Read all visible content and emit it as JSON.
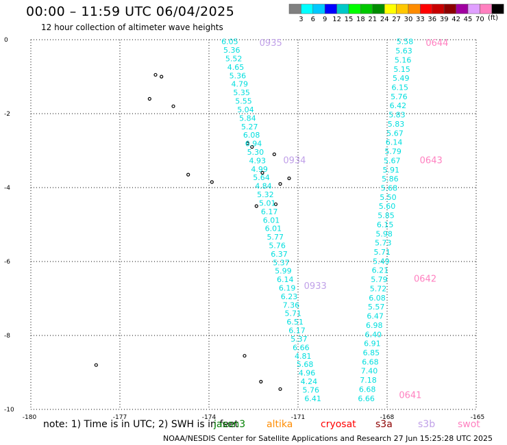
{
  "header": {
    "title": "00:00 – 11:59 UTC 06/04/2025",
    "subtitle": "12 hour collection of altimeter wave heights"
  },
  "colorbar": {
    "unit": "(ft)",
    "segments": [
      {
        "color": "#808080",
        "label": ""
      },
      {
        "color": "#00ffff",
        "label": "3"
      },
      {
        "color": "#00c8ff",
        "label": "6"
      },
      {
        "color": "#0000ff",
        "label": "9"
      },
      {
        "color": "#00c8c8",
        "label": "12"
      },
      {
        "color": "#00ff00",
        "label": "15"
      },
      {
        "color": "#00c800",
        "label": "18"
      },
      {
        "color": "#008c00",
        "label": "21"
      },
      {
        "color": "#ffff00",
        "label": "24"
      },
      {
        "color": "#ffc800",
        "label": "27"
      },
      {
        "color": "#ff8c00",
        "label": "30"
      },
      {
        "color": "#ff0000",
        "label": "33"
      },
      {
        "color": "#c80000",
        "label": "36"
      },
      {
        "color": "#8c0000",
        "label": "39"
      },
      {
        "color": "#a000a0",
        "label": "42"
      },
      {
        "color": "#e0a0ff",
        "label": "45"
      },
      {
        "color": "#ff80c0",
        "label": "70"
      },
      {
        "color": "#000000",
        "label": ""
      }
    ]
  },
  "axes": {
    "lon_range": [
      -180,
      -165
    ],
    "lat_range": [
      -10,
      0
    ],
    "x_ticks": [
      "-180",
      "-177",
      "-174",
      "-171",
      "-168",
      "-165"
    ],
    "x_tick_values": [
      -180,
      -177,
      -174,
      -171,
      -168,
      -165
    ],
    "y_ticks": [
      "0",
      "-2",
      "-4",
      "-6",
      "-8",
      "-10"
    ],
    "y_tick_values": [
      0,
      -2,
      -4,
      -6,
      -8,
      -10
    ]
  },
  "tracks": [
    {
      "label_color": "#00dede",
      "start": [
        -173.3,
        -0.05
      ],
      "end": [
        -170.5,
        -9.7
      ],
      "values": [
        "6.05",
        "5.36",
        "5.52",
        "4.65",
        "5.36",
        "4.79",
        "5.35",
        "5.55",
        "5.04",
        "5.84",
        "5.27",
        "6.08",
        "6.94",
        "5.30",
        "4.93",
        "4.99",
        "5.64",
        "4.84",
        "5.32",
        "5.01",
        "6.17",
        "6.01",
        "6.01",
        "5.77",
        "5.76",
        "6.37",
        "5.37",
        "5.99",
        "6.14",
        "6.19",
        "6.23",
        "7.36",
        "5.71",
        "6.51",
        "6.17",
        "5.37",
        "6.66",
        "4.81",
        "5.68",
        "4.96",
        "4.24",
        "5.76",
        "6.41"
      ],
      "times": [
        {
          "text": "0935",
          "lon": -172.3,
          "lat": -0.07,
          "color": "#c0a0e8"
        },
        {
          "text": "0934",
          "lon": -171.5,
          "lat": -3.25,
          "color": "#c0a0e8"
        },
        {
          "text": "0933",
          "lon": -170.8,
          "lat": -6.65,
          "color": "#c0a0e8"
        }
      ]
    },
    {
      "label_color": "#00dede",
      "start": [
        -167.4,
        -0.05
      ],
      "end": [
        -168.7,
        -9.7
      ],
      "values": [
        "5.58",
        "5.63",
        "5.16",
        "5.15",
        "5.49",
        "6.15",
        "5.76",
        "6.42",
        "5.83",
        "5.83",
        "5.67",
        "6.14",
        "5.79",
        "5.67",
        "5.91",
        "5.86",
        "5.68",
        "5.50",
        "5.60",
        "5.85",
        "6.15",
        "5.98",
        "5.73",
        "5.71",
        "5.49",
        "6.21",
        "5.79",
        "5.72",
        "6.08",
        "5.57",
        "6.47",
        "6.98",
        "6.40",
        "6.91",
        "6.85",
        "6.68",
        "7.40",
        "7.18",
        "6.68",
        "6.66"
      ],
      "times": [
        {
          "text": "0644",
          "lon": -166.7,
          "lat": -0.07,
          "color": "#ff80c0"
        },
        {
          "text": "0643",
          "lon": -166.9,
          "lat": -3.25,
          "color": "#ff80c0"
        },
        {
          "text": "0642",
          "lon": -167.1,
          "lat": -6.45,
          "color": "#ff80c0"
        },
        {
          "text": "0641",
          "lon": -167.6,
          "lat": -9.6,
          "color": "#ff80c0"
        }
      ]
    }
  ],
  "islands": [
    {
      "lon": -175.8,
      "lat": -0.95
    },
    {
      "lon": -175.6,
      "lat": -1.0
    },
    {
      "lon": -176.0,
      "lat": -1.6
    },
    {
      "lon": -175.2,
      "lat": -1.8
    },
    {
      "lon": -174.7,
      "lat": -3.65
    },
    {
      "lon": -173.9,
      "lat": -3.85
    },
    {
      "lon": -172.7,
      "lat": -2.8
    },
    {
      "lon": -172.55,
      "lat": -2.9
    },
    {
      "lon": -171.8,
      "lat": -3.1
    },
    {
      "lon": -172.2,
      "lat": -3.6
    },
    {
      "lon": -171.3,
      "lat": -3.75
    },
    {
      "lon": -171.6,
      "lat": -3.9
    },
    {
      "lon": -172.4,
      "lat": -4.5
    },
    {
      "lon": -171.75,
      "lat": -4.45
    },
    {
      "lon": -172.8,
      "lat": -8.55
    },
    {
      "lon": -177.8,
      "lat": -8.8
    },
    {
      "lon": -172.25,
      "lat": -9.25
    },
    {
      "lon": -171.6,
      "lat": -9.45
    }
  ],
  "footer": {
    "note": "note: 1) Time is in UTC; 2) SWH is in feet",
    "satellites": [
      {
        "name": "jason3",
        "color": "#008000"
      },
      {
        "name": "altika",
        "color": "#ff8c00"
      },
      {
        "name": "cryosat",
        "color": "#ff0000"
      },
      {
        "name": "s3a",
        "color": "#8c0000"
      },
      {
        "name": "s3b",
        "color": "#c0a0e8"
      },
      {
        "name": "swot",
        "color": "#ff80c0"
      }
    ],
    "credit": "NOAA/NESDIS Center for Satellite Applications and Research    27 Jun 15:25:28 UTC 2025"
  }
}
